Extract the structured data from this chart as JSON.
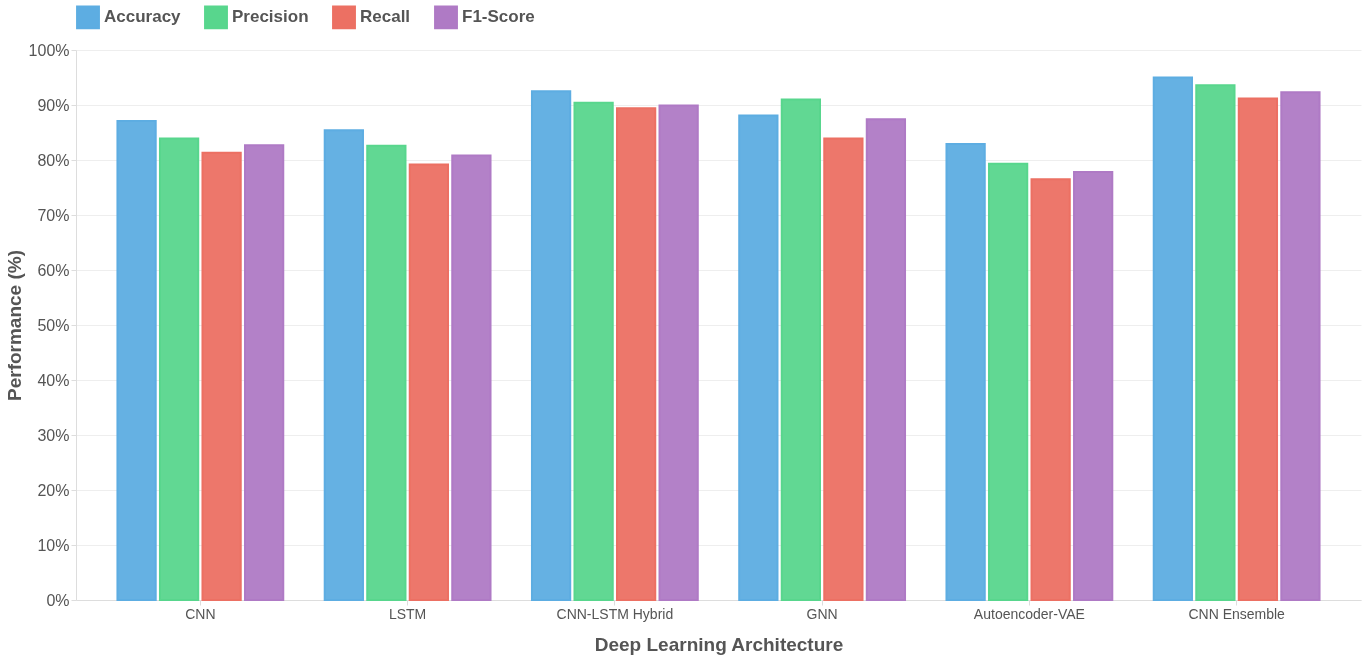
{
  "chart_data": {
    "type": "bar",
    "xlabel": "Deep Learning Architecture",
    "ylabel": "Performance (%)",
    "categories": [
      "CNN",
      "LSTM",
      "CNN-LSTM Hybrid",
      "GNN",
      "Autoencoder-VAE",
      "CNN Ensemble"
    ],
    "series": [
      {
        "name": "Accuracy",
        "color": "#5dade2",
        "values": [
          87.1,
          85.4,
          92.5,
          88.1,
          82.9,
          95.0
        ]
      },
      {
        "name": "Precision",
        "color": "#58d68d",
        "values": [
          83.9,
          82.6,
          90.4,
          91.0,
          79.3,
          93.6
        ]
      },
      {
        "name": "Recall",
        "color": "#ec7063",
        "values": [
          81.3,
          79.2,
          89.4,
          83.9,
          76.5,
          91.2
        ]
      },
      {
        "name": "F1-Score",
        "color": "#af7ac5",
        "values": [
          82.7,
          80.8,
          89.9,
          87.4,
          77.8,
          92.3
        ]
      }
    ],
    "ylim": [
      0,
      100
    ],
    "yticks": [
      {
        "value": 0,
        "label": "0%"
      },
      {
        "value": 10,
        "label": "10%"
      },
      {
        "value": 20,
        "label": "20%"
      },
      {
        "value": 30,
        "label": "30%"
      },
      {
        "value": 40,
        "label": "40%"
      },
      {
        "value": 50,
        "label": "50%"
      },
      {
        "value": 60,
        "label": "60%"
      },
      {
        "value": 70,
        "label": "70%"
      },
      {
        "value": 80,
        "label": "80%"
      },
      {
        "value": 90,
        "label": "90%"
      },
      {
        "value": 100,
        "label": "100%"
      }
    ],
    "grid": "y",
    "legend": "top"
  }
}
